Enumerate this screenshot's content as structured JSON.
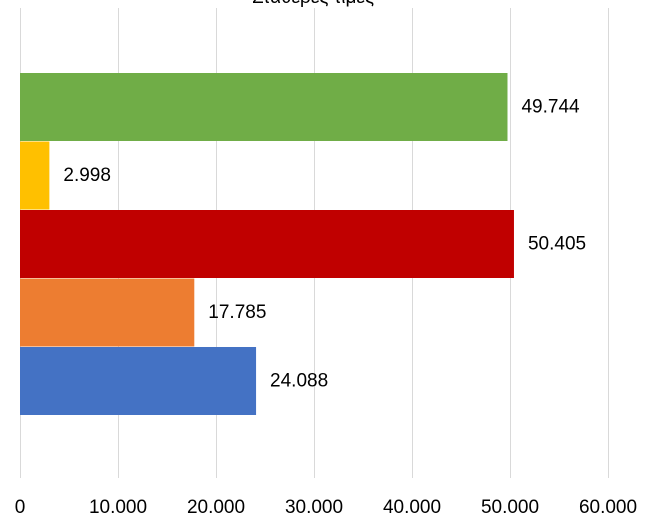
{
  "chart_data": {
    "type": "bar",
    "orientation": "horizontal",
    "title": "Σταθερές τιμές",
    "xlim": [
      0,
      60000
    ],
    "x_ticks": [
      0,
      10000,
      20000,
      30000,
      40000,
      50000,
      60000
    ],
    "x_tick_labels": [
      "0",
      "10.000",
      "20.000",
      "30.000",
      "40.000",
      "50.000",
      "60.000"
    ],
    "grid": true,
    "legend": "none",
    "bars": [
      {
        "value": 49744,
        "label": "49.744",
        "color": "#70AD47"
      },
      {
        "value": 2998,
        "label": "2.998",
        "color": "#FFC000"
      },
      {
        "value": 50405,
        "label": "50.405",
        "color": "#C00000"
      },
      {
        "value": 17785,
        "label": "17.785",
        "color": "#ED7D31"
      },
      {
        "value": 24088,
        "label": "24.088",
        "color": "#4472C4"
      }
    ]
  }
}
